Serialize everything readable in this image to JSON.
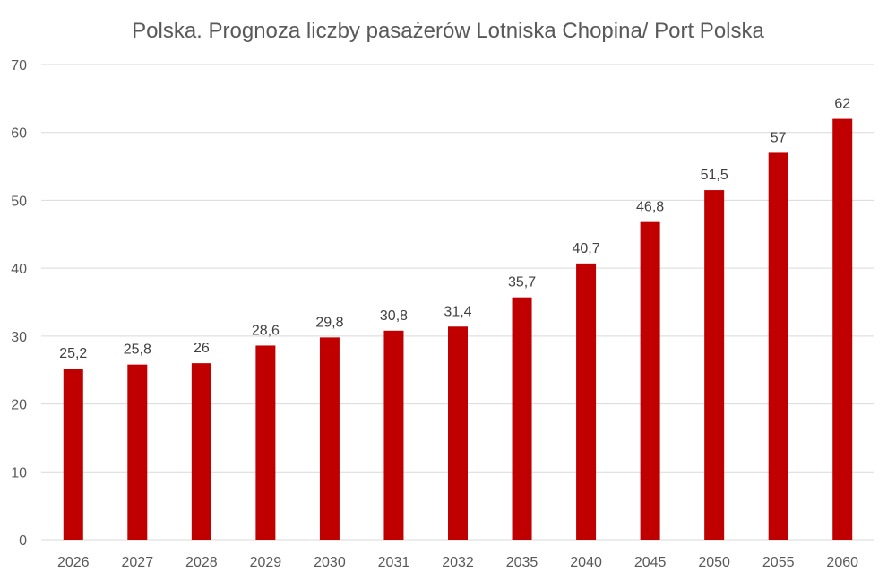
{
  "chart_data": {
    "type": "bar",
    "title": "Polska. Prognoza liczby pasażerów Lotniska Chopina/ Port Polska",
    "xlabel": "",
    "ylabel": "",
    "categories": [
      "2026",
      "2027",
      "2028",
      "2029",
      "2030",
      "2031",
      "2032",
      "2035",
      "2040",
      "2045",
      "2050",
      "2055",
      "2060"
    ],
    "values": [
      25.2,
      25.8,
      26,
      28.6,
      29.8,
      30.8,
      31.4,
      35.7,
      40.7,
      46.8,
      51.5,
      57,
      62
    ],
    "data_labels": [
      "25,2",
      "25,8",
      "26",
      "28,6",
      "29,8",
      "30,8",
      "31,4",
      "35,7",
      "40,7",
      "46,8",
      "51,5",
      "57",
      "62"
    ],
    "ylim": [
      0,
      70
    ],
    "yticks": [
      0,
      10,
      20,
      30,
      40,
      50,
      60,
      70
    ],
    "ytick_labels": [
      "0",
      "10",
      "20",
      "30",
      "40",
      "50",
      "60",
      "70"
    ],
    "grid": true,
    "legend": "none",
    "bar_color": "#C00000"
  }
}
